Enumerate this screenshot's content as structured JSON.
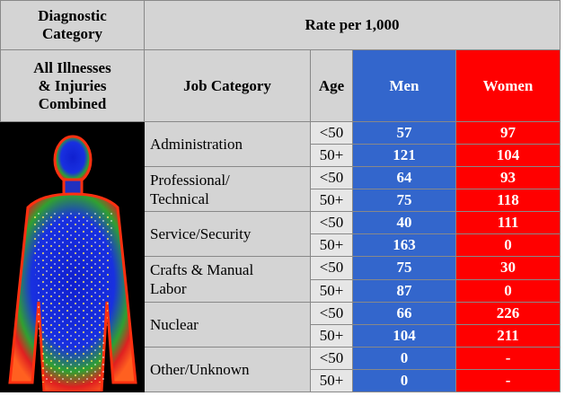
{
  "header": {
    "diagnostic_label": "Diagnostic\nCategory",
    "rate_label": "Rate per 1,000",
    "diagnostic_value": "All  Illnesses\n& Injuries\nCombined",
    "job_label": "Job Category",
    "age_label": "Age",
    "men_label": "Men",
    "women_label": "Women"
  },
  "table": {
    "groups": [
      {
        "job": "Administration",
        "rows": [
          {
            "age": "<50",
            "men": 57,
            "women": 97
          },
          {
            "age": "50+",
            "men": 121,
            "women": 104
          }
        ]
      },
      {
        "job": "Professional/\nTechnical",
        "rows": [
          {
            "age": "<50",
            "men": 64,
            "women": 93
          },
          {
            "age": "50+",
            "men": 75,
            "women": 118
          }
        ]
      },
      {
        "job": "Service/Security",
        "rows": [
          {
            "age": "<50",
            "men": 40,
            "women": 111
          },
          {
            "age": "50+",
            "men": 163,
            "women": 0
          }
        ]
      },
      {
        "job": "Crafts & Manual\nLabor",
        "rows": [
          {
            "age": "<50",
            "men": 75,
            "women": 30
          },
          {
            "age": "50+",
            "men": 87,
            "women": 0
          }
        ]
      },
      {
        "job": "Nuclear",
        "rows": [
          {
            "age": "<50",
            "men": 66,
            "women": 226
          },
          {
            "age": "50+",
            "men": 104,
            "women": 211
          }
        ]
      },
      {
        "job": "Other/Unknown",
        "rows": [
          {
            "age": "<50",
            "men": 0,
            "women": "-"
          },
          {
            "age": "50+",
            "men": 0,
            "women": "-"
          }
        ]
      }
    ]
  }
}
